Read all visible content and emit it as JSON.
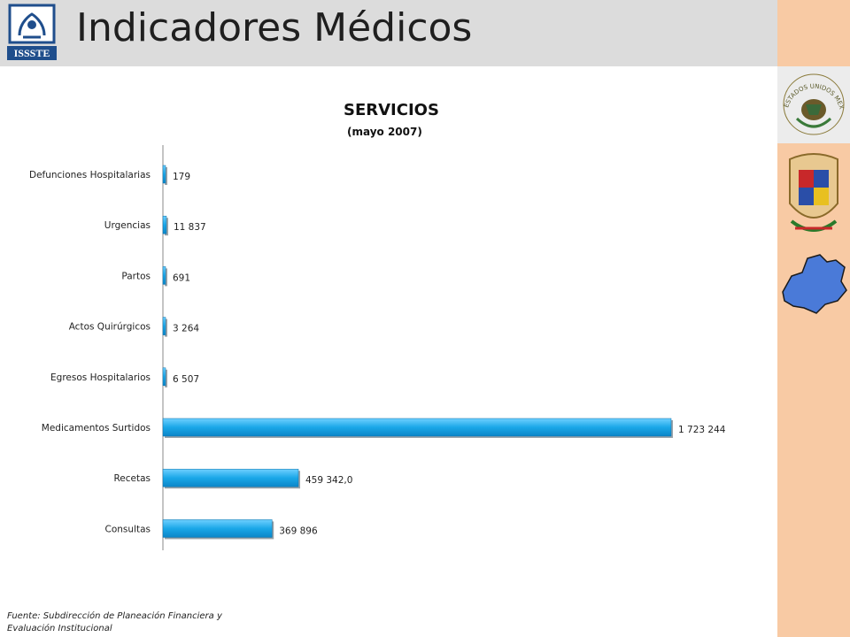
{
  "header": {
    "title": "Indicadores Médicos",
    "logo_text": "ISSSTE",
    "background": "#dcdcdc"
  },
  "side": {
    "background": "#f8caa4",
    "emblem_text": "ESTADOS UNIDOS MEXICANOS"
  },
  "chart_data": {
    "type": "bar",
    "orientation": "horizontal",
    "title": "SERVICIOS",
    "subtitle": "(mayo 2007)",
    "categories": [
      "Defunciones Hospitalarias",
      "Urgencias",
      "Partos",
      "Actos Quirúrgicos",
      "Egresos Hospitalarios",
      "Medicamentos Surtidos",
      "Recetas",
      "Consultas"
    ],
    "values": [
      179,
      11837,
      691,
      3264,
      6507,
      1723244,
      459342,
      369896
    ],
    "data_labels": [
      "179",
      "11 837",
      "691",
      "3 264",
      "6 507",
      "1 723 244",
      "459 342,0",
      "369 896"
    ],
    "xlim": [
      0,
      1723244
    ],
    "grid": false,
    "legend": "none",
    "bar_color": "#1aa7e8"
  },
  "footer": {
    "source": "Fuente: Subdirección de Planeación Financiera y Evaluación Institucional"
  }
}
